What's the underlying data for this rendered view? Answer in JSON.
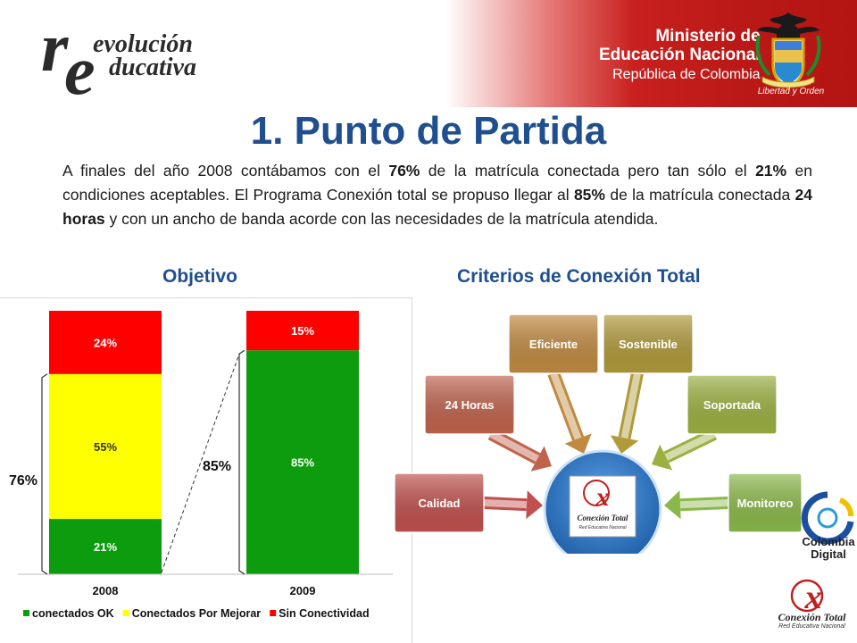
{
  "header": {
    "logo_word1": "evolución",
    "logo_word2": "ducativa",
    "ministry_line1": "Ministerio de",
    "ministry_line2": "Educación Nacional",
    "ministry_line3": "República de Colombia",
    "seal_caption": "Libertad y Orden",
    "brand_color": "#c8201e"
  },
  "title": "1. Punto de Partida",
  "intro": {
    "t1": "A finales del año 2008 contábamos con el ",
    "b1": "76%",
    "t2": " de la matrícula conectada pero tan sólo el ",
    "b2": "21%",
    "t3": " en condiciones aceptables. El Programa Conexión total se propuso llegar al ",
    "b3": "85%",
    "t4": " de la matrícula conectada ",
    "b4": "24 horas",
    "t5": " y con un ancho de banda acorde con las necesidades de la matrícula atendida."
  },
  "headings": {
    "objetivo": "Objetivo",
    "criterios": "Criterios de Conexión Total"
  },
  "chart_data": {
    "type": "bar",
    "stacked": true,
    "categories": [
      "2008",
      "2009"
    ],
    "series": [
      {
        "name": "conectados OK",
        "color": "#0d9c0d",
        "values": [
          21,
          85
        ],
        "labels": [
          "21%",
          "85%"
        ]
      },
      {
        "name": "Conectados Por Mejorar",
        "color": "#ffff00",
        "values": [
          55,
          0
        ],
        "labels": [
          "55%",
          ""
        ]
      },
      {
        "name": "Sin Conectividad",
        "color": "#ff0000",
        "values": [
          24,
          15
        ],
        "labels": [
          "24%",
          "15%"
        ]
      }
    ],
    "ylim": [
      0,
      100
    ],
    "legend_position": "bottom",
    "annotations": [
      "76%",
      "85%"
    ]
  },
  "diagram": {
    "center_logo_text": "Conexión Total",
    "center_logo_sub": "Red Educativa Nacional",
    "criteria": [
      {
        "label": "Calidad",
        "color": "#c0504d"
      },
      {
        "label": "24 Horas",
        "color": "#c0634d"
      },
      {
        "label": "Eficiente",
        "color": "#c08a40"
      },
      {
        "label": "Sostenible",
        "color": "#b09a3a"
      },
      {
        "label": "Soportada",
        "color": "#9bb040"
      },
      {
        "label": "Monitoreo",
        "color": "#8ab84a"
      }
    ]
  },
  "footer": {
    "colombia_digital_line1": "Colombia",
    "colombia_digital_line2": "Digital",
    "ct_logo_text": "Conexión Total",
    "ct_logo_sub": "Red Educativa Nacional"
  }
}
